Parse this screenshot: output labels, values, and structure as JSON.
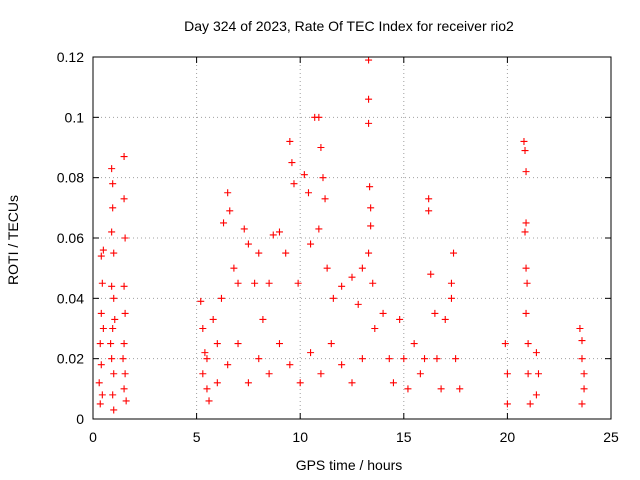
{
  "chart_data": {
    "type": "scatter",
    "title": "Day 324 of 2023, Rate Of TEC Index for receiver rio2",
    "xlabel": "GPS time / hours",
    "ylabel": "ROTI / TECUs",
    "xlim": [
      0,
      25
    ],
    "ylim": [
      0,
      0.12
    ],
    "x_ticks": [
      0,
      5,
      10,
      15,
      20,
      25
    ],
    "y_ticks": [
      0,
      0.02,
      0.04,
      0.06,
      0.08,
      0.1,
      0.12
    ],
    "x_tick_labels": [
      "0",
      "5",
      "10",
      "15",
      "20",
      "25"
    ],
    "y_tick_labels": [
      "0",
      "0.02",
      "0.04",
      "0.06",
      "0.08",
      "0.1",
      "0.12"
    ],
    "grid": true,
    "marker": "plus",
    "color": "#ff0000",
    "series": [
      {
        "values": [
          [
            0.3,
            0.012
          ],
          [
            0.35,
            0.025
          ],
          [
            0.4,
            0.054
          ],
          [
            0.45,
            0.045
          ],
          [
            0.5,
            0.056
          ],
          [
            0.4,
            0.018
          ],
          [
            0.45,
            0.008
          ],
          [
            0.5,
            0.03
          ],
          [
            0.35,
            0.005
          ],
          [
            0.4,
            0.035
          ],
          [
            0.9,
            0.083
          ],
          [
            0.95,
            0.078
          ],
          [
            0.95,
            0.07
          ],
          [
            0.9,
            0.062
          ],
          [
            1.0,
            0.055
          ],
          [
            0.9,
            0.044
          ],
          [
            1.0,
            0.04
          ],
          [
            0.95,
            0.03
          ],
          [
            0.9,
            0.02
          ],
          [
            1.0,
            0.015
          ],
          [
            0.95,
            0.008
          ],
          [
            1.0,
            0.003
          ],
          [
            0.85,
            0.025
          ],
          [
            1.05,
            0.033
          ],
          [
            1.5,
            0.087
          ],
          [
            1.5,
            0.073
          ],
          [
            1.55,
            0.06
          ],
          [
            1.5,
            0.044
          ],
          [
            1.55,
            0.035
          ],
          [
            1.5,
            0.025
          ],
          [
            1.55,
            0.015
          ],
          [
            1.5,
            0.01
          ],
          [
            1.6,
            0.006
          ],
          [
            1.45,
            0.02
          ],
          [
            5.2,
            0.039
          ],
          [
            5.3,
            0.03
          ],
          [
            5.4,
            0.022
          ],
          [
            5.3,
            0.015
          ],
          [
            5.5,
            0.01
          ],
          [
            5.6,
            0.006
          ],
          [
            5.8,
            0.033
          ],
          [
            6.0,
            0.025
          ],
          [
            6.2,
            0.04
          ],
          [
            6.3,
            0.065
          ],
          [
            6.5,
            0.075
          ],
          [
            6.6,
            0.069
          ],
          [
            6.8,
            0.05
          ],
          [
            7.0,
            0.045
          ],
          [
            7.3,
            0.063
          ],
          [
            7.5,
            0.058
          ],
          [
            7.8,
            0.045
          ],
          [
            8.0,
            0.055
          ],
          [
            8.2,
            0.033
          ],
          [
            8.5,
            0.045
          ],
          [
            8.7,
            0.061
          ],
          [
            9.0,
            0.062
          ],
          [
            9.3,
            0.055
          ],
          [
            9.5,
            0.092
          ],
          [
            9.6,
            0.085
          ],
          [
            9.7,
            0.078
          ],
          [
            9.9,
            0.045
          ],
          [
            10.2,
            0.081
          ],
          [
            10.4,
            0.075
          ],
          [
            10.5,
            0.058
          ],
          [
            10.7,
            0.1
          ],
          [
            10.9,
            0.1
          ],
          [
            11.0,
            0.09
          ],
          [
            11.1,
            0.08
          ],
          [
            11.2,
            0.073
          ],
          [
            10.9,
            0.063
          ],
          [
            11.3,
            0.05
          ],
          [
            11.6,
            0.04
          ],
          [
            12.0,
            0.044
          ],
          [
            12.5,
            0.047
          ],
          [
            12.8,
            0.038
          ],
          [
            13.0,
            0.05
          ],
          [
            13.3,
            0.119
          ],
          [
            13.3,
            0.106
          ],
          [
            13.3,
            0.098
          ],
          [
            13.35,
            0.077
          ],
          [
            13.4,
            0.07
          ],
          [
            13.4,
            0.064
          ],
          [
            13.3,
            0.055
          ],
          [
            13.5,
            0.045
          ],
          [
            13.6,
            0.03
          ],
          [
            5.5,
            0.02
          ],
          [
            6.0,
            0.012
          ],
          [
            6.5,
            0.018
          ],
          [
            7.0,
            0.025
          ],
          [
            7.5,
            0.012
          ],
          [
            8.0,
            0.02
          ],
          [
            8.5,
            0.015
          ],
          [
            9.0,
            0.025
          ],
          [
            9.5,
            0.018
          ],
          [
            10.0,
            0.012
          ],
          [
            10.5,
            0.022
          ],
          [
            11.0,
            0.015
          ],
          [
            11.5,
            0.025
          ],
          [
            12.0,
            0.018
          ],
          [
            12.5,
            0.012
          ],
          [
            13.0,
            0.02
          ],
          [
            14.0,
            0.035
          ],
          [
            14.3,
            0.02
          ],
          [
            14.5,
            0.012
          ],
          [
            14.8,
            0.033
          ],
          [
            15.0,
            0.02
          ],
          [
            15.2,
            0.01
          ],
          [
            15.5,
            0.025
          ],
          [
            15.8,
            0.015
          ],
          [
            16.0,
            0.02
          ],
          [
            16.2,
            0.073
          ],
          [
            16.2,
            0.069
          ],
          [
            16.3,
            0.048
          ],
          [
            16.5,
            0.035
          ],
          [
            16.6,
            0.02
          ],
          [
            16.8,
            0.01
          ],
          [
            17.0,
            0.033
          ],
          [
            17.3,
            0.045
          ],
          [
            17.4,
            0.055
          ],
          [
            17.3,
            0.04
          ],
          [
            17.5,
            0.02
          ],
          [
            17.7,
            0.01
          ],
          [
            19.9,
            0.025
          ],
          [
            20.0,
            0.015
          ],
          [
            20.0,
            0.005
          ],
          [
            20.8,
            0.092
          ],
          [
            20.85,
            0.089
          ],
          [
            20.9,
            0.082
          ],
          [
            20.9,
            0.065
          ],
          [
            20.85,
            0.062
          ],
          [
            20.9,
            0.05
          ],
          [
            20.95,
            0.045
          ],
          [
            20.9,
            0.035
          ],
          [
            21.0,
            0.025
          ],
          [
            21.0,
            0.015
          ],
          [
            21.1,
            0.005
          ],
          [
            21.4,
            0.022
          ],
          [
            21.5,
            0.015
          ],
          [
            21.4,
            0.008
          ],
          [
            23.5,
            0.03
          ],
          [
            23.6,
            0.026
          ],
          [
            23.6,
            0.02
          ],
          [
            23.7,
            0.015
          ],
          [
            23.7,
            0.01
          ],
          [
            23.6,
            0.005
          ]
        ]
      }
    ]
  }
}
